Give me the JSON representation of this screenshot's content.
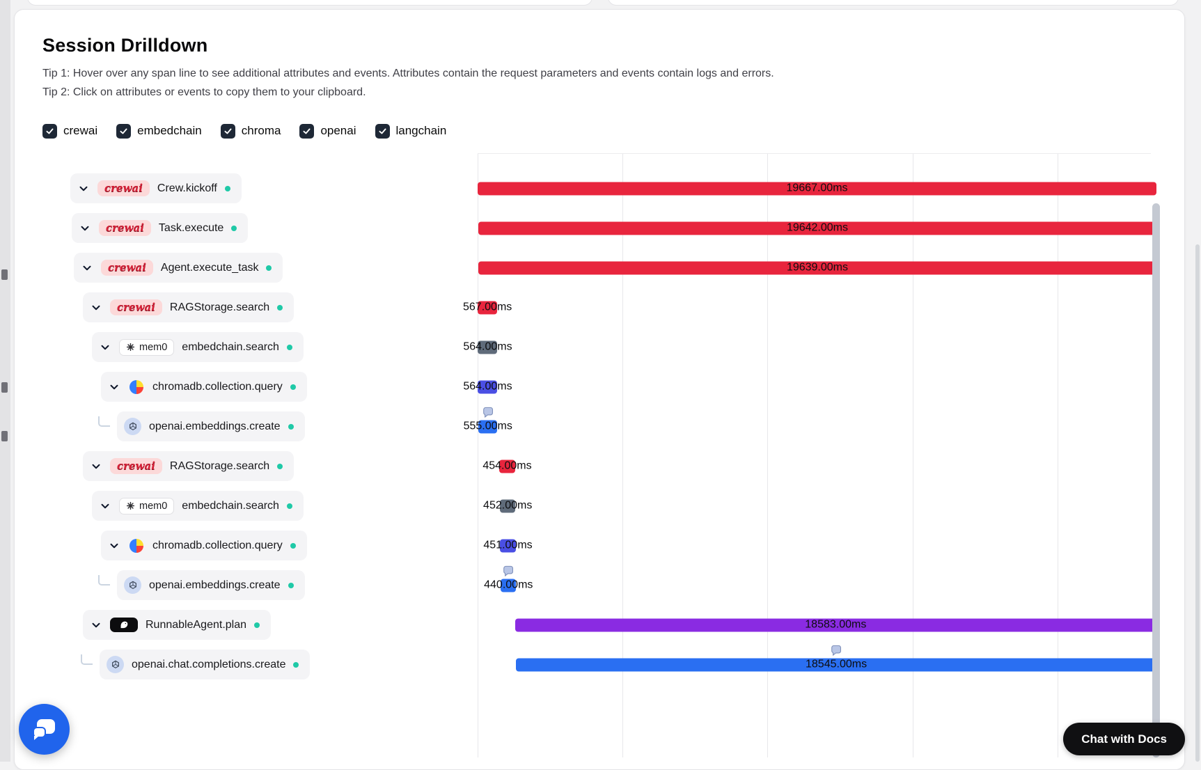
{
  "panel": {
    "title": "Session Drilldown",
    "tip1": "Tip 1: Hover over any span line to see additional attributes and events. Attributes contain the request parameters and events contain logs and errors.",
    "tip2": "Tip 2: Click on attributes or events to copy them to your clipboard."
  },
  "filters": [
    {
      "label": "crewai",
      "checked": true
    },
    {
      "label": "embedchain",
      "checked": true
    },
    {
      "label": "chroma",
      "checked": true
    },
    {
      "label": "openai",
      "checked": true
    },
    {
      "label": "langchain",
      "checked": true
    }
  ],
  "badges": {
    "crewai": "crewai",
    "mem0": "mem0"
  },
  "colors": {
    "red": "#e8253d",
    "slate": "#5f6b7a",
    "indigo": "#4a4fe4",
    "blue": "#2a6ff2",
    "purple": "#8a2be2",
    "teal": "#1fc9a7",
    "checkbox": "#1e2836",
    "widget": "#2064ec"
  },
  "trace": {
    "rows": [
      {
        "label": "Crew.kickoff",
        "badge": "crewai",
        "depth": 0,
        "connector": "chevron",
        "duration": "19667.00ms",
        "duration_ms": 19667,
        "bubble": false,
        "bar": {
          "left_pct": 0,
          "width_pct": 100,
          "color": "red"
        }
      },
      {
        "label": "Task.execute",
        "badge": "crewai",
        "depth": 1,
        "connector": "chevron",
        "duration": "19642.00ms",
        "duration_ms": 19642,
        "bubble": false,
        "bar": {
          "left_pct": 0.1,
          "width_pct": 99.9,
          "color": "red"
        }
      },
      {
        "label": "Agent.execute_task",
        "badge": "crewai",
        "depth": 2,
        "connector": "chevron",
        "duration": "19639.00ms",
        "duration_ms": 19639,
        "bubble": false,
        "bar": {
          "left_pct": 0.1,
          "width_pct": 99.9,
          "color": "red"
        }
      },
      {
        "label": "RAGStorage.search",
        "badge": "crewai",
        "depth": 3,
        "connector": "chevron",
        "duration": "567.00ms",
        "duration_ms": 567,
        "bubble": false,
        "bar": {
          "left_pct": 0,
          "width_pct": 2.9,
          "color": "red"
        }
      },
      {
        "label": "embedchain.search",
        "badge": "mem0",
        "depth": 4,
        "connector": "chevron",
        "duration": "564.00ms",
        "duration_ms": 564,
        "bubble": false,
        "bar": {
          "left_pct": 0.05,
          "width_pct": 2.87,
          "color": "slate"
        }
      },
      {
        "label": "chromadb.collection.query",
        "badge": "chroma",
        "depth": 5,
        "connector": "chevron",
        "duration": "564.00ms",
        "duration_ms": 564,
        "bubble": false,
        "bar": {
          "left_pct": 0.05,
          "width_pct": 2.87,
          "color": "indigo"
        }
      },
      {
        "label": "openai.embeddings.create",
        "badge": "openai",
        "depth": 6,
        "connector": "elbow",
        "duration": "555.00ms",
        "duration_ms": 555,
        "bubble": true,
        "bar": {
          "left_pct": 0.1,
          "width_pct": 2.82,
          "color": "blue"
        }
      },
      {
        "label": "RAGStorage.search",
        "badge": "crewai",
        "depth": 3,
        "connector": "chevron",
        "duration": "454.00ms",
        "duration_ms": 454,
        "bubble": false,
        "bar": {
          "left_pct": 3.2,
          "width_pct": 2.31,
          "color": "red"
        }
      },
      {
        "label": "embedchain.search",
        "badge": "mem0",
        "depth": 4,
        "connector": "chevron",
        "duration": "452.00ms",
        "duration_ms": 452,
        "bubble": false,
        "bar": {
          "left_pct": 3.28,
          "width_pct": 2.3,
          "color": "slate"
        }
      },
      {
        "label": "chromadb.collection.query",
        "badge": "chroma",
        "depth": 5,
        "connector": "chevron",
        "duration": "451.00ms",
        "duration_ms": 451,
        "bubble": false,
        "bar": {
          "left_pct": 3.32,
          "width_pct": 2.29,
          "color": "indigo"
        }
      },
      {
        "label": "openai.embeddings.create",
        "badge": "openai",
        "depth": 6,
        "connector": "elbow",
        "duration": "440.00ms",
        "duration_ms": 440,
        "bubble": true,
        "bar": {
          "left_pct": 3.42,
          "width_pct": 2.24,
          "color": "blue"
        }
      },
      {
        "label": "RunnableAgent.plan",
        "badge": "langchain",
        "depth": 3,
        "connector": "chevron",
        "duration": "18583.00ms",
        "duration_ms": 18583,
        "bubble": false,
        "bar": {
          "left_pct": 5.5,
          "width_pct": 94.5,
          "color": "purple"
        }
      },
      {
        "label": "openai.chat.completions.create",
        "badge": "openai",
        "depth": 4,
        "connector": "elbow",
        "duration": "18545.00ms",
        "duration_ms": 18545,
        "bubble": true,
        "bar": {
          "left_pct": 5.65,
          "width_pct": 94.35,
          "color": "blue"
        }
      }
    ]
  },
  "chat_button": {
    "label": "Chat with Docs"
  }
}
